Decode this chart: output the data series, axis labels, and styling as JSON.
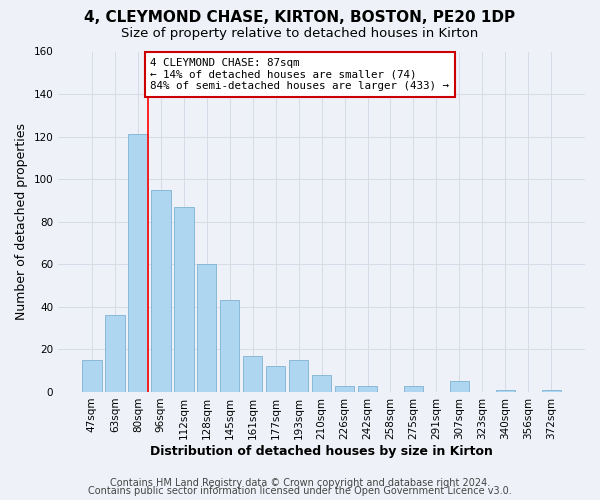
{
  "title": "4, CLEYMOND CHASE, KIRTON, BOSTON, PE20 1DP",
  "subtitle": "Size of property relative to detached houses in Kirton",
  "xlabel": "Distribution of detached houses by size in Kirton",
  "ylabel": "Number of detached properties",
  "bar_labels": [
    "47sqm",
    "63sqm",
    "80sqm",
    "96sqm",
    "112sqm",
    "128sqm",
    "145sqm",
    "161sqm",
    "177sqm",
    "193sqm",
    "210sqm",
    "226sqm",
    "242sqm",
    "258sqm",
    "275sqm",
    "291sqm",
    "307sqm",
    "323sqm",
    "340sqm",
    "356sqm",
    "372sqm"
  ],
  "bar_values": [
    15,
    36,
    121,
    95,
    87,
    60,
    43,
    17,
    12,
    15,
    8,
    3,
    3,
    0,
    3,
    0,
    5,
    0,
    1,
    0,
    1
  ],
  "bar_color": "#aed6f1",
  "bar_edge_color": "#7fb3d3",
  "ylim": [
    0,
    160
  ],
  "yticks": [
    0,
    20,
    40,
    60,
    80,
    100,
    120,
    140,
    160
  ],
  "annotation_title": "4 CLEYMOND CHASE: 87sqm",
  "annotation_line1": "← 14% of detached houses are smaller (74)",
  "annotation_line2": "84% of semi-detached houses are larger (433) →",
  "annotation_box_color": "#ffffff",
  "annotation_box_edge": "#cc0000",
  "red_line_index": 2.43,
  "footer1": "Contains HM Land Registry data © Crown copyright and database right 2024.",
  "footer2": "Contains public sector information licensed under the Open Government Licence v3.0.",
  "grid_color": "#d5dce8",
  "background_color": "#eef2f8",
  "title_fontsize": 11,
  "subtitle_fontsize": 9.5,
  "axis_label_fontsize": 9,
  "tick_fontsize": 7.5,
  "footer_fontsize": 7
}
